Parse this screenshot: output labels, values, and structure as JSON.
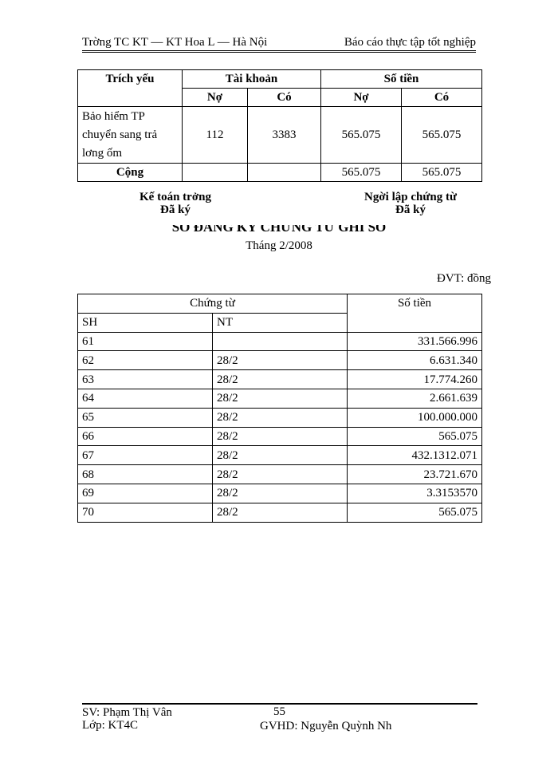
{
  "header": {
    "left": "Trờng   TC KT — KT Hoa L   — Hà Nội",
    "right": "Báo cáo thực tập tốt nghiệp"
  },
  "table1": {
    "headers": {
      "trich_yeu": "Trích yếu",
      "tai_khoan": "Tài khoản",
      "so_tien": "Số tiền",
      "no": "Nợ",
      "co": "Có"
    },
    "row": {
      "desc": [
        "Bảo hiểm TP",
        "chuyển sang trả",
        "lơng   ốm"
      ],
      "tk_no": "112",
      "tk_co": "3383",
      "st_no": "565.075",
      "st_co": "565.075"
    },
    "total": {
      "label": "Cộng",
      "st_no": "565.075",
      "st_co": "565.075"
    }
  },
  "signatures": {
    "left_title": "Kế toán trởng",
    "left_sub": "Đã ký",
    "right_title": "Ngời   lập chứng từ",
    "right_sub": "Đã ký"
  },
  "title": "SỔ ĐĂNG KÝ CHỨNG TỪ GHI SỔ",
  "subtitle": "Tháng 2/2008",
  "unit": "ĐVT: đồng",
  "table2": {
    "headers": {
      "chung_tu": "Chứng từ",
      "so_tien": "Số tiền",
      "sh": "SH",
      "nt": "NT"
    },
    "rows": [
      {
        "sh": "61",
        "nt": "",
        "amount": "331.566.996"
      },
      {
        "sh": "62",
        "nt": "28/2",
        "amount": "6.631.340"
      },
      {
        "sh": "63",
        "nt": "28/2",
        "amount": "17.774.260"
      },
      {
        "sh": "64",
        "nt": "28/2",
        "amount": "2.661.639"
      },
      {
        "sh": "65",
        "nt": "28/2",
        "amount": "100.000.000"
      },
      {
        "sh": "66",
        "nt": "28/2",
        "amount": "565.075"
      },
      {
        "sh": "67",
        "nt": "28/2",
        "amount": "432.1312.071"
      },
      {
        "sh": "68",
        "nt": "28/2",
        "amount": "23.721.670"
      },
      {
        "sh": "69",
        "nt": "28/2",
        "amount": "3.3153570"
      },
      {
        "sh": "70",
        "nt": "28/2",
        "amount": "565.075"
      }
    ]
  },
  "footer": {
    "student": "SV: Phạm Thị Vân",
    "class": "Lớp: KT4C",
    "page": "55",
    "advisor": "GVHD: Nguyễn Quỳnh Nh"
  }
}
